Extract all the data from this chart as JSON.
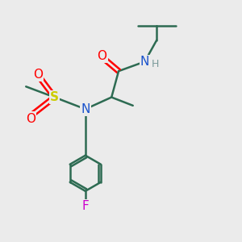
{
  "background_color": "#ebebeb",
  "bond_color": "#2d6b52",
  "atom_colors": {
    "O": "#ff0000",
    "N_amide": "#1a52cc",
    "N_central": "#1a52cc",
    "S": "#cccc00",
    "F": "#cc00cc",
    "H": "#7a9a9a",
    "C": "#2d6b52"
  },
  "figsize": [
    3.0,
    3.0
  ],
  "dpi": 100
}
